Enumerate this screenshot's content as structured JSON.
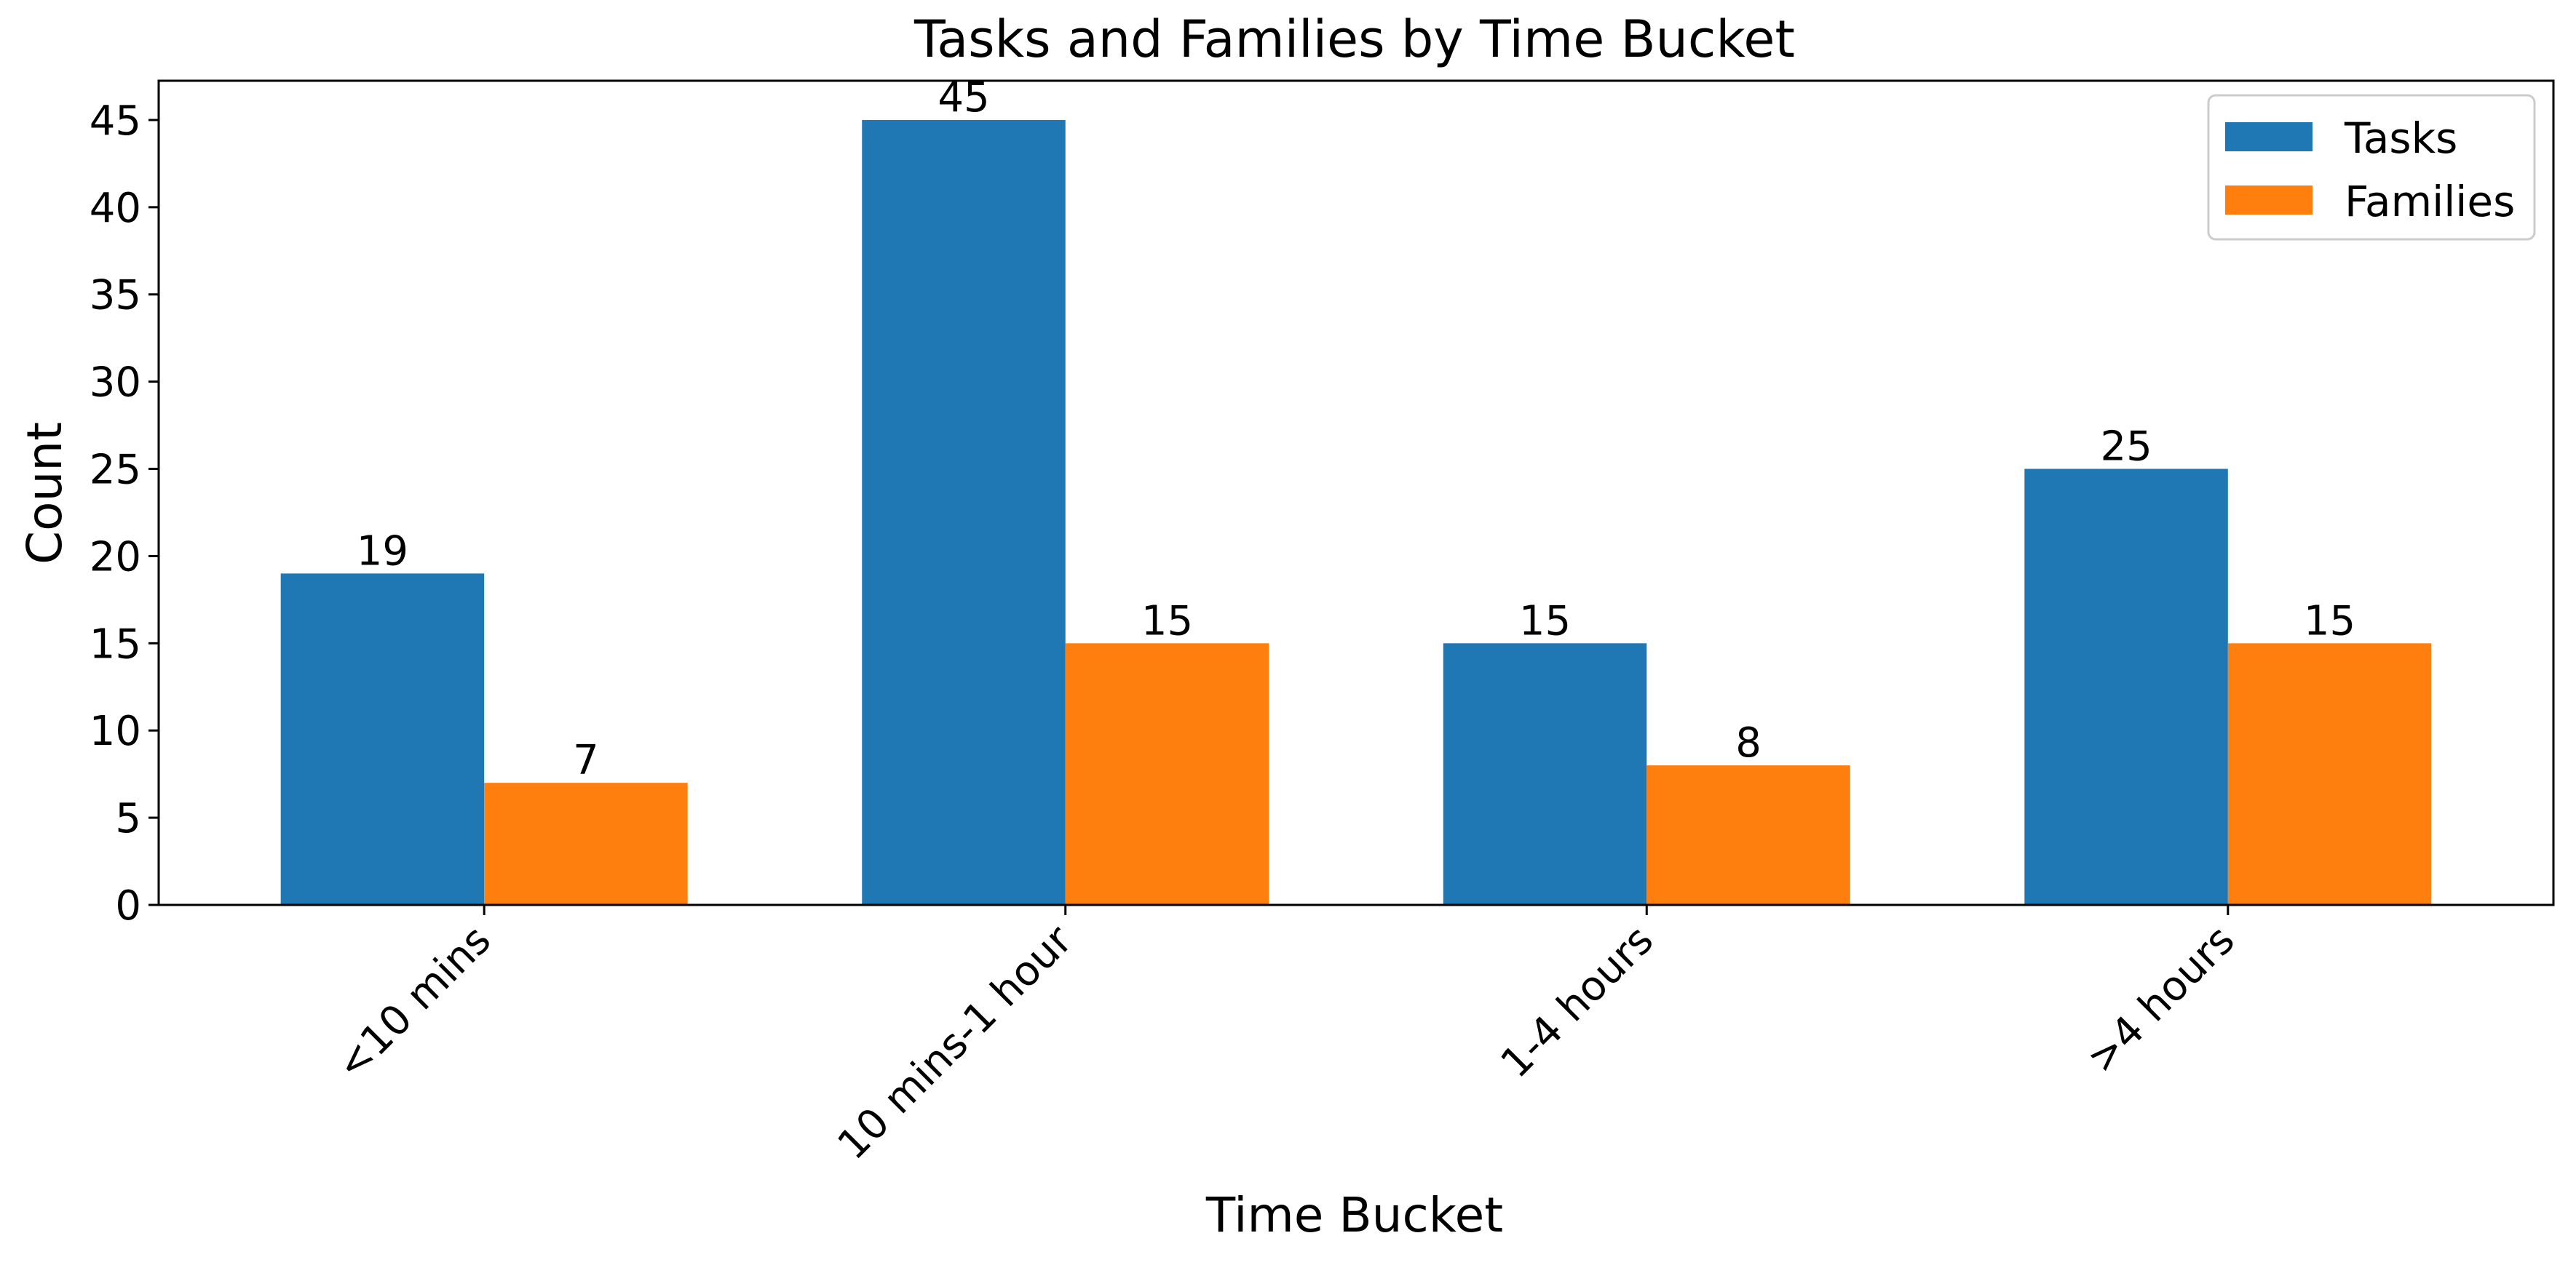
{
  "chart_data": {
    "type": "bar",
    "title": "Tasks and Families by Time Bucket",
    "xlabel": "Time Bucket",
    "ylabel": "Count",
    "categories": [
      "<10 mins",
      "10 mins-1 hour",
      "1-4 hours",
      ">4 hours"
    ],
    "series": [
      {
        "name": "Tasks",
        "values": [
          19,
          45,
          15,
          25
        ],
        "color": "#1f77b4"
      },
      {
        "name": "Families",
        "values": [
          7,
          15,
          8,
          15
        ],
        "color": "#ff7f0e"
      }
    ],
    "ylim": [
      0,
      47.25
    ],
    "yticks": [
      0,
      5,
      10,
      15,
      20,
      25,
      30,
      35,
      40,
      45
    ],
    "grid": false,
    "legend_position": "top-right",
    "data_labels": true
  }
}
